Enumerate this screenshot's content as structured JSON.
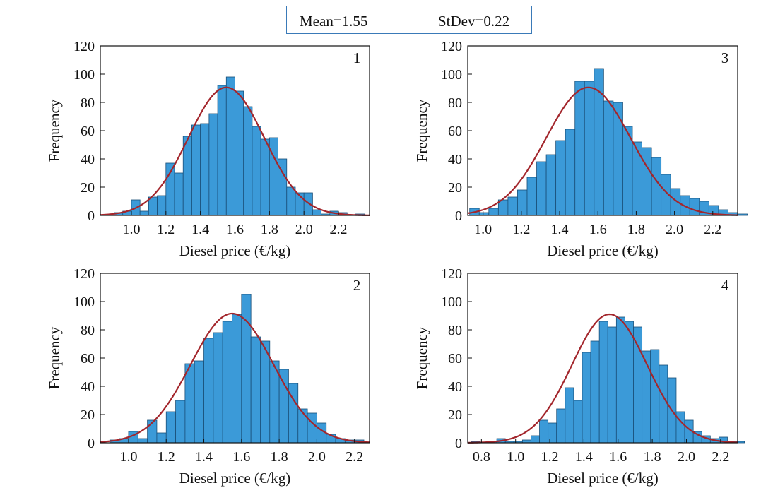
{
  "legend": {
    "mean_label": "Mean=1.55",
    "sd_label": "StDev=0.22"
  },
  "colors": {
    "bar_fill": "#3b9ad8",
    "bar_stroke": "#1a4f78",
    "curve": "#a3262c",
    "axis": "#111111"
  },
  "chart_data": [
    {
      "panel": "1",
      "type": "bar",
      "title": "1",
      "xlabel": "Diesel price (€/kg)",
      "ylabel": "Frequency",
      "xlim": [
        0.82,
        2.38
      ],
      "ylim": [
        0,
        120
      ],
      "xticks": [
        "1.0",
        "1.2",
        "1.4",
        "1.6",
        "1.8",
        "2.0",
        "2.2"
      ],
      "yticks": [
        "0",
        "20",
        "40",
        "60",
        "80",
        "100",
        "120"
      ],
      "bin_start": 0.9,
      "bin_width": 0.05,
      "values": [
        2,
        3,
        11,
        3,
        13,
        14,
        37,
        30,
        56,
        64,
        65,
        72,
        92,
        98,
        88,
        77,
        63,
        54,
        55,
        40,
        20,
        16,
        16,
        4,
        1,
        3,
        2,
        0,
        1
      ],
      "curve": {
        "mean": 1.55,
        "sd": 0.22,
        "peak": 90.6
      }
    },
    {
      "panel": "3",
      "type": "bar",
      "title": "3",
      "xlabel": "Diesel price (€/kg)",
      "ylabel": "Frequency",
      "xlim": [
        0.92,
        2.33
      ],
      "ylim": [
        0,
        120
      ],
      "xticks": [
        "1.0",
        "1.2",
        "1.4",
        "1.6",
        "1.8",
        "2.0",
        "2.2"
      ],
      "yticks": [
        "0",
        "20",
        "40",
        "60",
        "80",
        "100",
        "120"
      ],
      "bin_start": 0.93,
      "bin_width": 0.05,
      "values": [
        5,
        2,
        5,
        11,
        13,
        18,
        27,
        38,
        43,
        53,
        61,
        95,
        95,
        104,
        81,
        80,
        63,
        52,
        48,
        41,
        29,
        19,
        14,
        12,
        10,
        7,
        4,
        2,
        1
      ],
      "curve": {
        "mean": 1.55,
        "sd": 0.22,
        "peak": 90.6
      }
    },
    {
      "panel": "2",
      "type": "bar",
      "title": "2",
      "xlabel": "Diesel price (€/kg)",
      "ylabel": "Frequency",
      "xlim": [
        0.85,
        2.28
      ],
      "ylim": [
        0,
        120
      ],
      "xticks": [
        "1.0",
        "1.2",
        "1.4",
        "1.6",
        "1.8",
        "2.0",
        "2.2"
      ],
      "yticks": [
        "0",
        "20",
        "40",
        "60",
        "80",
        "100",
        "120"
      ],
      "bin_start": 0.9,
      "bin_width": 0.05,
      "values": [
        2,
        3,
        8,
        3,
        16,
        7,
        22,
        30,
        56,
        58,
        74,
        78,
        86,
        91,
        105,
        75,
        72,
        58,
        52,
        42,
        24,
        21,
        14,
        6,
        3,
        2,
        2
      ],
      "curve": {
        "mean": 1.55,
        "sd": 0.22,
        "peak": 91.5
      }
    },
    {
      "panel": "4",
      "type": "bar",
      "title": "4",
      "xlabel": "Diesel price (€/kg)",
      "ylabel": "Frequency",
      "xlim": [
        0.72,
        2.3
      ],
      "ylim": [
        0,
        120
      ],
      "xticks": [
        "0.8",
        "1.0",
        "1.2",
        "1.4",
        "1.6",
        "1.8",
        "2.0",
        "2.2"
      ],
      "yticks": [
        "0",
        "20",
        "40",
        "60",
        "80",
        "100",
        "120"
      ],
      "bin_start": 0.74,
      "bin_width": 0.05,
      "values": [
        1,
        0,
        1,
        3,
        1,
        1,
        2,
        5,
        16,
        14,
        24,
        39,
        30,
        64,
        72,
        86,
        82,
        89,
        86,
        82,
        65,
        66,
        55,
        46,
        22,
        16,
        8,
        5,
        3,
        4,
        1,
        1
      ],
      "curve": {
        "mean": 1.55,
        "sd": 0.22,
        "peak": 91.0
      }
    }
  ]
}
